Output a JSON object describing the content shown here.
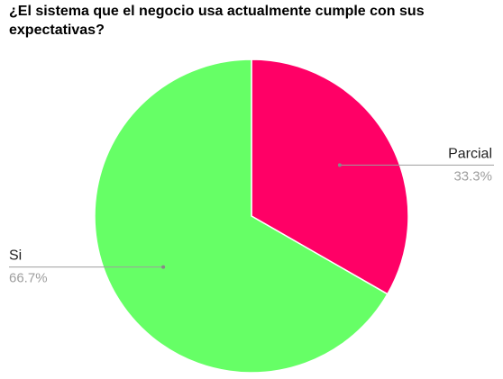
{
  "chart_data": {
    "type": "pie",
    "title": "¿El sistema que el negocio usa actualmente cumple con sus expectativas?",
    "slices": [
      {
        "label": "Parcial",
        "value": 33.3,
        "percent_label": "33.3%",
        "color": "#ff0066"
      },
      {
        "label": "Si",
        "value": 66.7,
        "percent_label": "66.7%",
        "color": "#66ff66"
      }
    ],
    "start_angle_deg": 0,
    "direction": "clockwise",
    "legend": "none",
    "leader_line_color": "#9e9e9e"
  }
}
